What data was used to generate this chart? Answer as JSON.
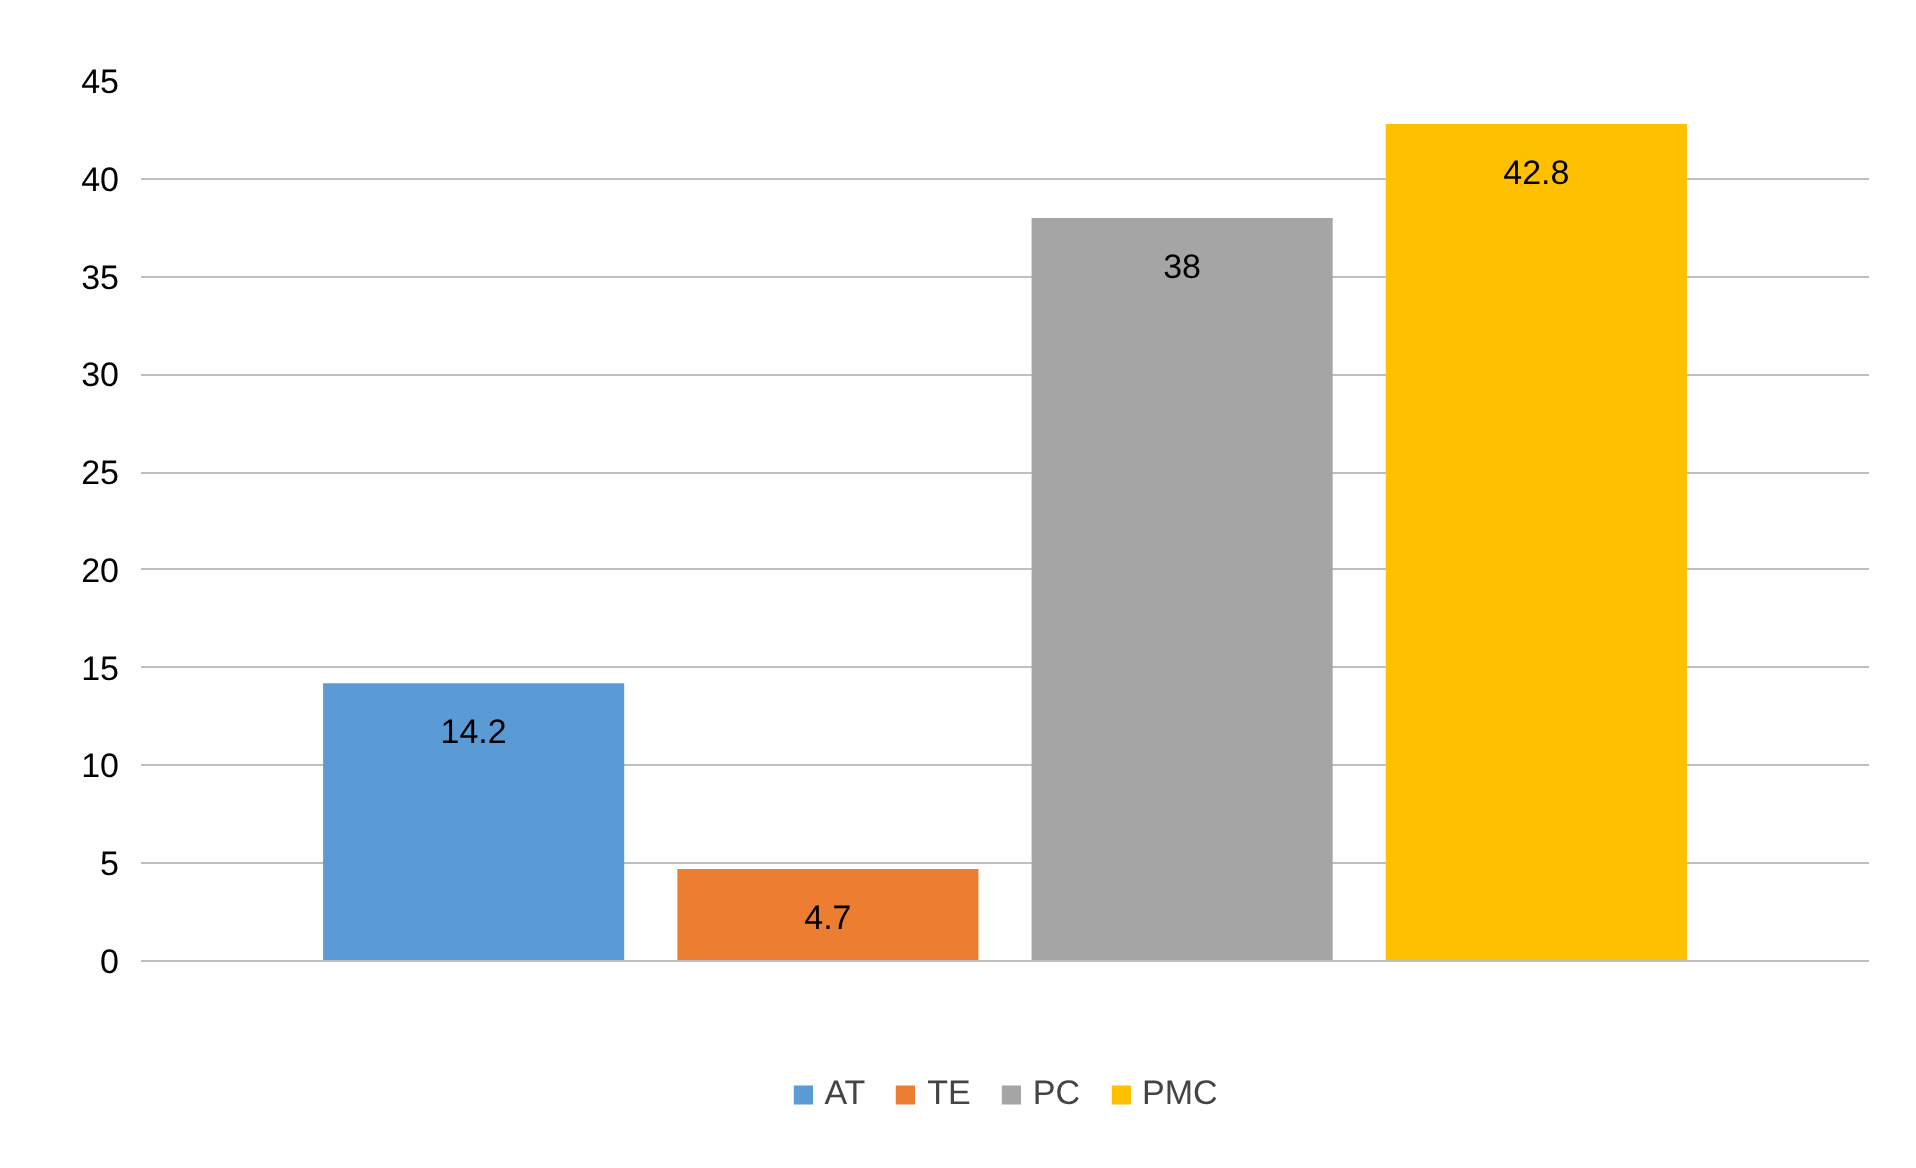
{
  "chart_data": {
    "type": "bar",
    "categories": [
      null
    ],
    "series": [
      {
        "name": "AT",
        "color": "#5b9bd5",
        "values": [
          14.2
        ]
      },
      {
        "name": "TE",
        "color": "#ed7d31",
        "values": [
          4.7
        ]
      },
      {
        "name": "PC",
        "color": "#a5a5a5",
        "values": [
          38
        ]
      },
      {
        "name": "PMC",
        "color": "#ffc000",
        "values": [
          42.8
        ]
      }
    ],
    "ylim": [
      0,
      45
    ],
    "yticks": [
      0,
      5,
      10,
      15,
      20,
      25,
      30,
      35,
      40,
      45
    ],
    "grid": "y",
    "legend": "bottom",
    "data_labels": true
  }
}
